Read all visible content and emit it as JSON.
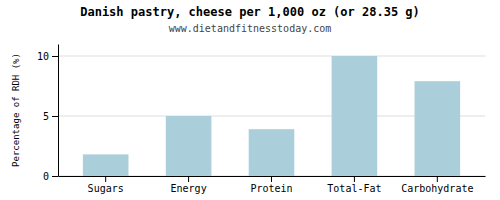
{
  "chart_data": {
    "type": "bar",
    "title": "Danish pastry, cheese per 1,000 oz (or 28.35 g)",
    "subtitle": "www.dietandfitnesstoday.com",
    "categories": [
      "Sugars",
      "Energy",
      "Protein",
      "Total-Fat",
      "Carbohydrate"
    ],
    "values": [
      1.8,
      5.0,
      3.9,
      10.0,
      7.9
    ],
    "color": "#aacfda",
    "ylabel": "Percentage of RDH (%)",
    "ylim": [
      0,
      11
    ],
    "yticks": [
      0,
      5,
      10
    ],
    "grid": true
  }
}
